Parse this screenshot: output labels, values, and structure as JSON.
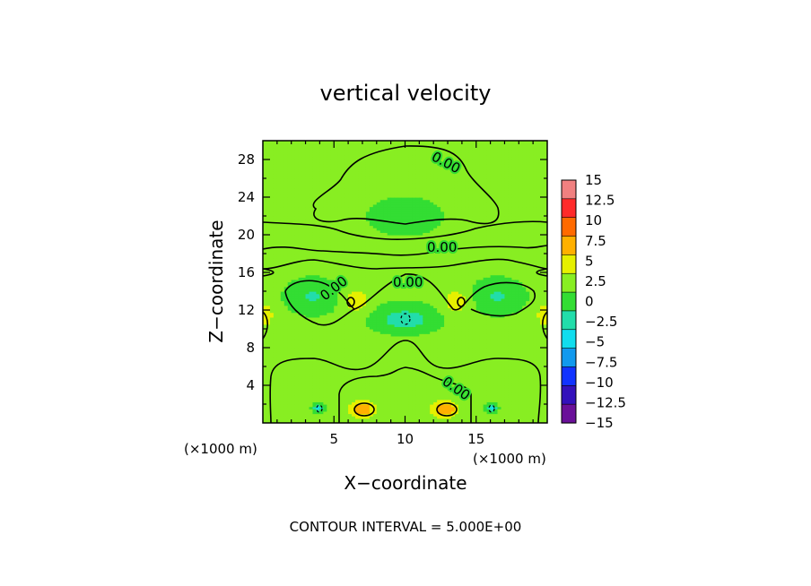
{
  "chart_data": {
    "type": "heatmap",
    "title": "vertical velocity",
    "xlabel": "X−coordinate",
    "ylabel": "Z−coordinate",
    "x_unit": "(×1000 m)",
    "z_unit": "(×1000 m)",
    "xlim": [
      0,
      20
    ],
    "ylim": [
      0,
      30
    ],
    "x_ticks": [
      5,
      10,
      15
    ],
    "x_tick_labels": [
      "5",
      "10",
      "15"
    ],
    "y_ticks": [
      4,
      8,
      12,
      16,
      20,
      24,
      28
    ],
    "y_tick_labels": [
      "4",
      "8",
      "12",
      "16",
      "20",
      "24",
      "28"
    ],
    "footer": "CONTOUR INTERVAL = 5.000E+00",
    "contour_interval": 5.0,
    "contour_labels": [
      "0.00",
      "0.00",
      "0.00",
      "0.00",
      "0.00"
    ],
    "colorbar": {
      "tick_labels": [
        "15",
        "12.5",
        "10",
        "7.5",
        "5",
        "2.5",
        "0",
        "−2.5",
        "−5",
        "−7.5",
        "−10",
        "−12.5",
        "−15"
      ],
      "levels": [
        {
          "low": 12.5,
          "high": 15,
          "color": "#f08080"
        },
        {
          "low": 10,
          "high": 12.5,
          "color": "#ff2a2a"
        },
        {
          "low": 7.5,
          "high": 10,
          "color": "#ff6a00"
        },
        {
          "low": 5,
          "high": 7.5,
          "color": "#ffb000"
        },
        {
          "low": 2.5,
          "high": 5,
          "color": "#e6f000"
        },
        {
          "low": 0,
          "high": 2.5,
          "color": "#88ee22"
        },
        {
          "low": -2.5,
          "high": 0,
          "color": "#33dd33"
        },
        {
          "low": -5,
          "high": -2.5,
          "color": "#22ddaa"
        },
        {
          "low": -7.5,
          "high": -5,
          "color": "#11ddee"
        },
        {
          "low": -10,
          "high": -7.5,
          "color": "#1199ee"
        },
        {
          "low": -12.5,
          "high": -10,
          "color": "#1133ff"
        },
        {
          "low": -15,
          "high": -12.5,
          "color": "#3311bb"
        },
        {
          "low": -17.5,
          "high": -15,
          "color": "#6a1099"
        }
      ]
    },
    "field": {
      "background_value": 0.5,
      "features": [
        {
          "x": 3.5,
          "z": 13.5,
          "amplitude": -3.2,
          "sx": 1.6,
          "sz": 1.6
        },
        {
          "x": 16.5,
          "z": 13.5,
          "amplitude": -3.2,
          "sx": 1.6,
          "sz": 1.6
        },
        {
          "x": 10.0,
          "z": 11.0,
          "amplitude": -4.6,
          "sx": 2.0,
          "sz": 1.4
        },
        {
          "x": 6.6,
          "z": 13.0,
          "amplitude": 3.8,
          "sx": 0.9,
          "sz": 1.3
        },
        {
          "x": 13.6,
          "z": 13.0,
          "amplitude": 3.8,
          "sx": 0.9,
          "sz": 1.3
        },
        {
          "x": 0.2,
          "z": 11.5,
          "amplitude": 4.5,
          "sx": 0.5,
          "sz": 1.2
        },
        {
          "x": 19.8,
          "z": 11.5,
          "amplitude": 4.5,
          "sx": 0.5,
          "sz": 1.2
        },
        {
          "x": 7.0,
          "z": 1.5,
          "amplitude": 7.0,
          "sx": 0.9,
          "sz": 0.9
        },
        {
          "x": 12.8,
          "z": 1.5,
          "amplitude": 7.0,
          "sx": 0.9,
          "sz": 0.9
        },
        {
          "x": 3.9,
          "z": 1.6,
          "amplitude": -5.8,
          "sx": 0.35,
          "sz": 0.4
        },
        {
          "x": 16.1,
          "z": 1.6,
          "amplitude": -5.8,
          "sx": 0.35,
          "sz": 0.4
        },
        {
          "x": 10.0,
          "z": 6.5,
          "amplitude": 2.0,
          "sx": 2.5,
          "sz": 2.5
        },
        {
          "x": 10.0,
          "z": 22.0,
          "amplitude": -0.8,
          "sx": 4.0,
          "sz": 3.0
        }
      ]
    }
  }
}
